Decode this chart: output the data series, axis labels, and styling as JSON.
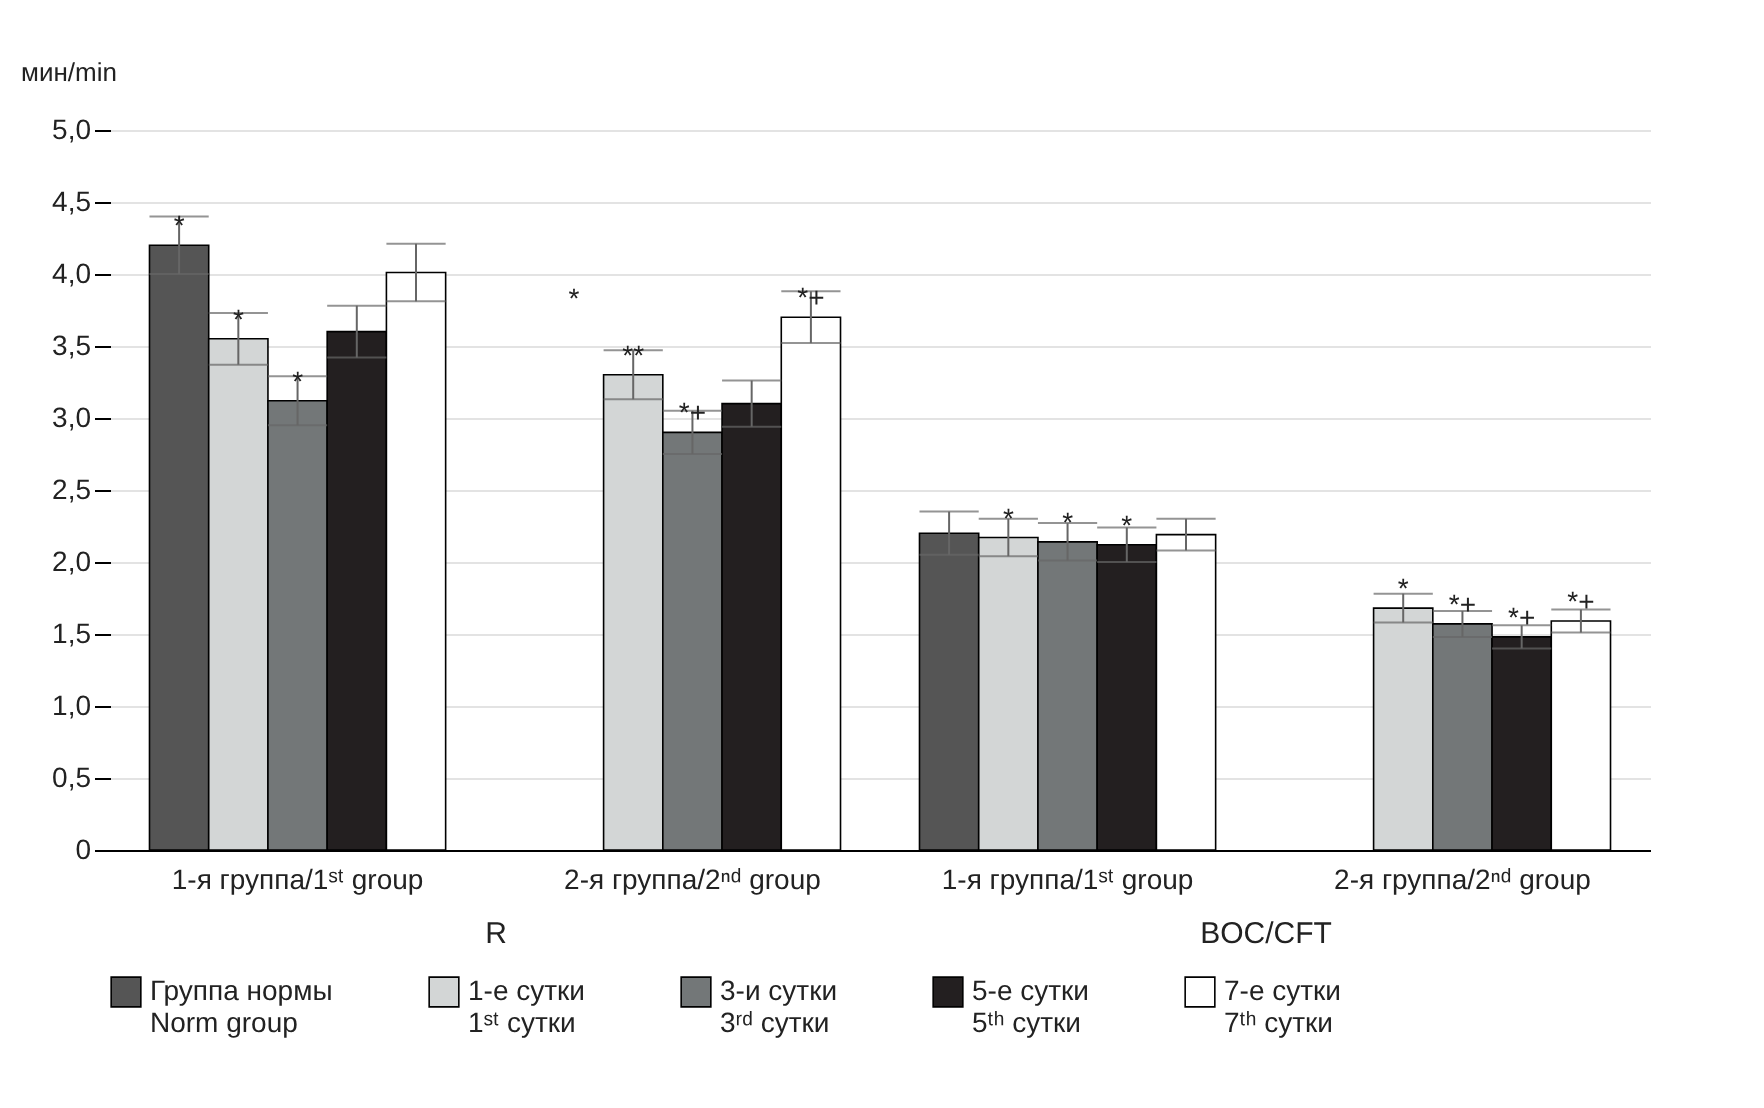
{
  "chart_data": [
    {
      "type": "bar",
      "xlabel": "R",
      "ylabel": "мин/min",
      "categories": [
        "1-я группа/1ˢᵗ group",
        "2-я группа/2ⁿᵈ group"
      ],
      "ylim": [
        0,
        5
      ],
      "yticks": [
        {
          "value": 0,
          "label": "0"
        },
        {
          "value": 0.5,
          "label": "0,5"
        },
        {
          "value": 1,
          "label": "1,0"
        },
        {
          "value": 1.5,
          "label": "1,5"
        },
        {
          "value": 2,
          "label": "2,0"
        },
        {
          "value": 2.5,
          "label": "2,5"
        },
        {
          "value": 3,
          "label": "3,0"
        },
        {
          "value": 3.5,
          "label": "3,5"
        },
        {
          "value": 4,
          "label": "4,0"
        },
        {
          "value": 4.5,
          "label": "4,5"
        },
        {
          "value": 5,
          "label": "5,0"
        }
      ],
      "grid": "y",
      "legend": "bottom",
      "series": [
        {
          "name": "Группа нормы\nNorm group",
          "color": "#555555",
          "values": [
            4.2,
            null
          ],
          "errors": [
            0.2,
            null
          ],
          "value_labels": [
            "*",
            null
          ]
        },
        {
          "name": "1-е сутки\n1ˢᵗ сутки",
          "color": "#d3d6d6",
          "values": [
            3.55,
            3.3
          ],
          "errors": [
            0.18,
            0.17
          ],
          "value_labels": [
            "*",
            "**"
          ]
        },
        {
          "name": "3-и сутки\n3ʳᵈ сутки",
          "color": "#737778",
          "values": [
            3.12,
            2.9
          ],
          "errors": [
            0.17,
            0.15
          ],
          "value_labels": [
            "*",
            "*+"
          ]
        },
        {
          "name": "5-е сутки\n5ᵗʰ сутки",
          "color": "#231f20",
          "values": [
            3.6,
            3.1
          ],
          "errors": [
            0.18,
            0.16
          ],
          "value_labels": [
            null,
            null
          ]
        },
        {
          "name": "7-е сутки\n7ᵗʰ сутки",
          "color": "#ffffff",
          "values": [
            4.01,
            3.7
          ],
          "errors": [
            0.2,
            0.18
          ],
          "value_labels": [
            null,
            "*+"
          ]
        }
      ],
      "annotations": [
        "*"
      ]
    },
    {
      "type": "bar",
      "xlabel": "BOC/CFT",
      "categories": [
        "1-я группа/1ˢᵗ group",
        "2-я группа/2ⁿᵈ group"
      ],
      "ylim": [
        0,
        5
      ],
      "yticks": [
        0,
        0.5,
        1,
        1.5,
        2,
        2.5,
        3,
        3.5,
        4,
        4.5,
        5
      ],
      "grid": "y",
      "legend": "bottom",
      "tick_labels": "x",
      "series": [
        {
          "name": "Группа нормы\nNorm group",
          "color": "#555555",
          "values": [
            2.2,
            null
          ],
          "errors": [
            0.15,
            null
          ],
          "value_labels": [
            null,
            null
          ]
        },
        {
          "name": "1-е сутки\n1ˢᵗ сутки",
          "color": "#d3d6d6",
          "values": [
            2.17,
            1.68
          ],
          "errors": [
            0.13,
            0.1
          ],
          "value_labels": [
            "*",
            "*"
          ]
        },
        {
          "name": "3-и сутки\n3ʳᵈ сутки",
          "color": "#737778",
          "values": [
            2.14,
            1.57
          ],
          "errors": [
            0.13,
            0.09
          ],
          "value_labels": [
            "*",
            "*+"
          ]
        },
        {
          "name": "5-е сутки\n5ᵗʰ сутки",
          "color": "#231f20",
          "values": [
            2.12,
            1.48
          ],
          "errors": [
            0.12,
            0.08
          ],
          "value_labels": [
            "*",
            "*+"
          ]
        },
        {
          "name": "7-е сутки\n7ᵗʰ сутки",
          "color": "#ffffff",
          "values": [
            2.19,
            1.59
          ],
          "errors": [
            0.11,
            0.08
          ],
          "value_labels": [
            null,
            "*+"
          ]
        }
      ]
    }
  ]
}
